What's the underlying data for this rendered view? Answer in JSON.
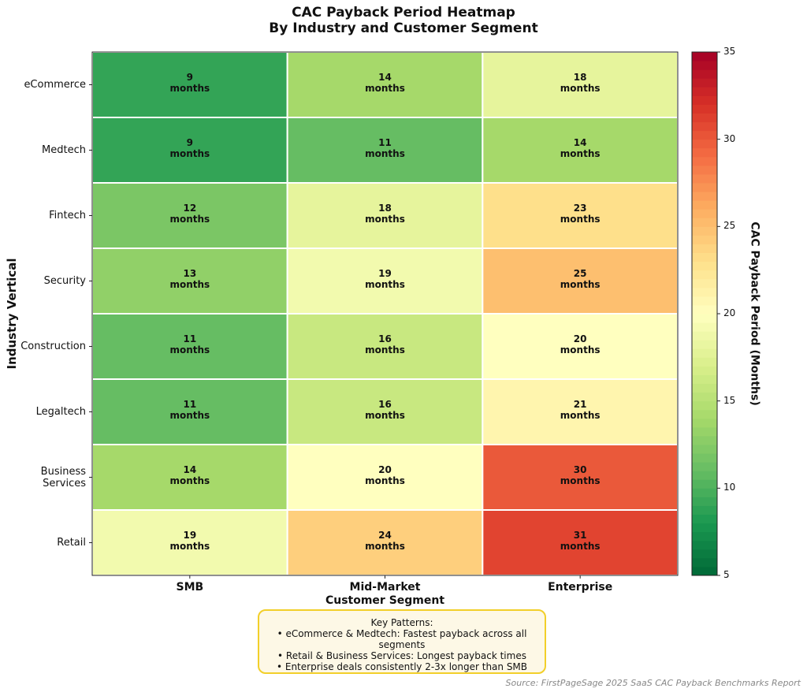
{
  "chart_data": {
    "type": "heatmap",
    "title": "CAC Payback Period Heatmap\nBy Industry and Customer Segment",
    "x_label": "Customer Segment",
    "y_label": "Industry Vertical",
    "categories": [
      "SMB",
      "Mid-Market",
      "Enterprise"
    ],
    "rows": [
      "eCommerce",
      "Medtech",
      "Fintech",
      "Security",
      "Construction",
      "Legaltech",
      "Business\nServices",
      "Retail"
    ],
    "values": [
      [
        9,
        14,
        18
      ],
      [
        9,
        11,
        14
      ],
      [
        12,
        18,
        23
      ],
      [
        13,
        19,
        25
      ],
      [
        11,
        16,
        20
      ],
      [
        11,
        16,
        21
      ],
      [
        14,
        20,
        30
      ],
      [
        19,
        24,
        31
      ]
    ],
    "value_labels": [
      [
        "9\nmonths",
        "14\nmonths",
        "18\nmonths"
      ],
      [
        "9\nmonths",
        "11\nmonths",
        "14\nmonths"
      ],
      [
        "12\nmonths",
        "18\nmonths",
        "23\nmonths"
      ],
      [
        "13\nmonths",
        "19\nmonths",
        "25\nmonths"
      ],
      [
        "11\nmonths",
        "16\nmonths",
        "20\nmonths"
      ],
      [
        "11\nmonths",
        "16\nmonths",
        "21\nmonths"
      ],
      [
        "14\nmonths",
        "20\nmonths",
        "30\nmonths"
      ],
      [
        "19\nmonths",
        "24\nmonths",
        "31\nmonths"
      ]
    ],
    "colormap": [
      "#006837",
      "#1a9850",
      "#66bd63",
      "#a6d96a",
      "#d9ef8b",
      "#ffffbf",
      "#fee08b",
      "#fdae61",
      "#f46d43",
      "#d73027",
      "#a50026"
    ],
    "clim": [
      5,
      35
    ],
    "colorbar_ticks": [
      5,
      10,
      15,
      20,
      25,
      30,
      35
    ],
    "colorbar_label": "CAC Payback Period (Months)",
    "annotation": {
      "title": "Key Patterns:",
      "lines": [
        "• eCommerce & Medtech: Fastest payback across all segments",
        "• Retail & Business Services: Longest payback times",
        "• Enterprise deals consistently 2-3x longer than SMB"
      ]
    },
    "source": "Source: FirstPageSage 2025 SaaS CAC Payback Benchmarks Report"
  }
}
